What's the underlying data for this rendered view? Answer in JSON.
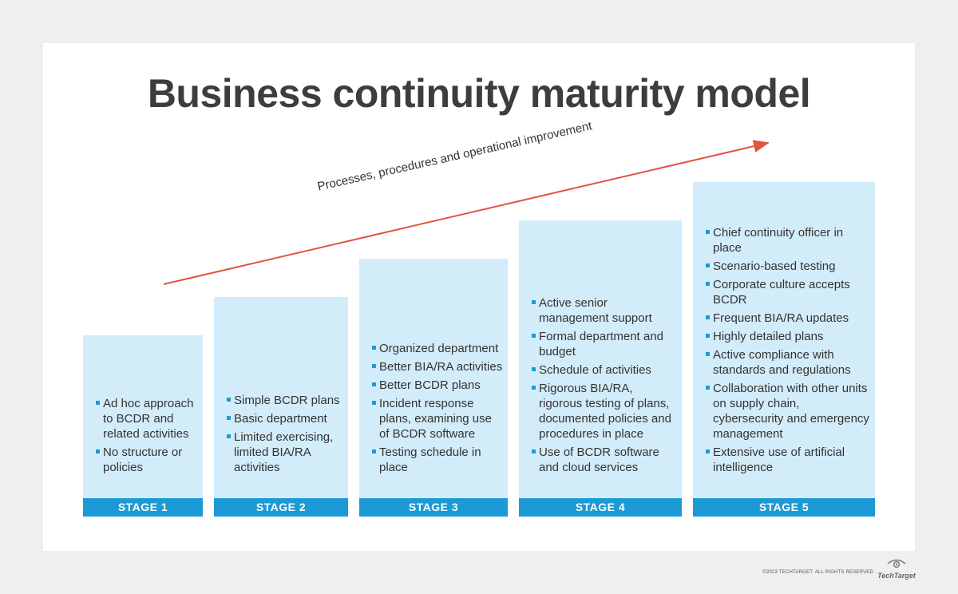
{
  "title": "Business continuity maturity model",
  "arrow_label": "Processes, procedures and operational improvement",
  "colors": {
    "accent": "#1b9ad6",
    "stage_fill": "#d3ecf9",
    "arrow": "#e0553f",
    "title": "#3d3d3d"
  },
  "stages": [
    {
      "label": "STAGE 1",
      "items": [
        "Ad hoc approach to BCDR and related activities",
        "No structure or policies"
      ]
    },
    {
      "label": "STAGE 2",
      "items": [
        "Simple BCDR plans",
        "Basic department",
        "Limited exercising, limited BIA/RA activities"
      ]
    },
    {
      "label": "STAGE 3",
      "items": [
        "Organized department",
        "Better BIA/RA activities",
        "Better BCDR plans",
        "Incident response plans, examining use of BCDR software",
        "Testing schedule in place"
      ]
    },
    {
      "label": "STAGE 4",
      "items": [
        "Active senior management support",
        "Formal department and budget",
        "Schedule of activities",
        "Rigorous BIA/RA, rigorous testing of plans, documented policies and procedures in place",
        "Use of BCDR software and cloud services"
      ]
    },
    {
      "label": "STAGE 5",
      "items": [
        "Chief continuity officer in place",
        "Scenario-based testing",
        "Corporate culture accepts BCDR",
        "Frequent BIA/RA updates",
        "Highly detailed plans",
        "Active compliance with standards and regulations",
        "Collaboration with other units on supply chain, cybersecurity and emergency management",
        "Extensive use of artificial intelligence"
      ]
    }
  ],
  "footer": {
    "copyright": "©2023 TECHTARGET. ALL RIGHTS RESERVED",
    "logo_text": "TechTarget",
    "logo_icon": "eye-icon"
  }
}
